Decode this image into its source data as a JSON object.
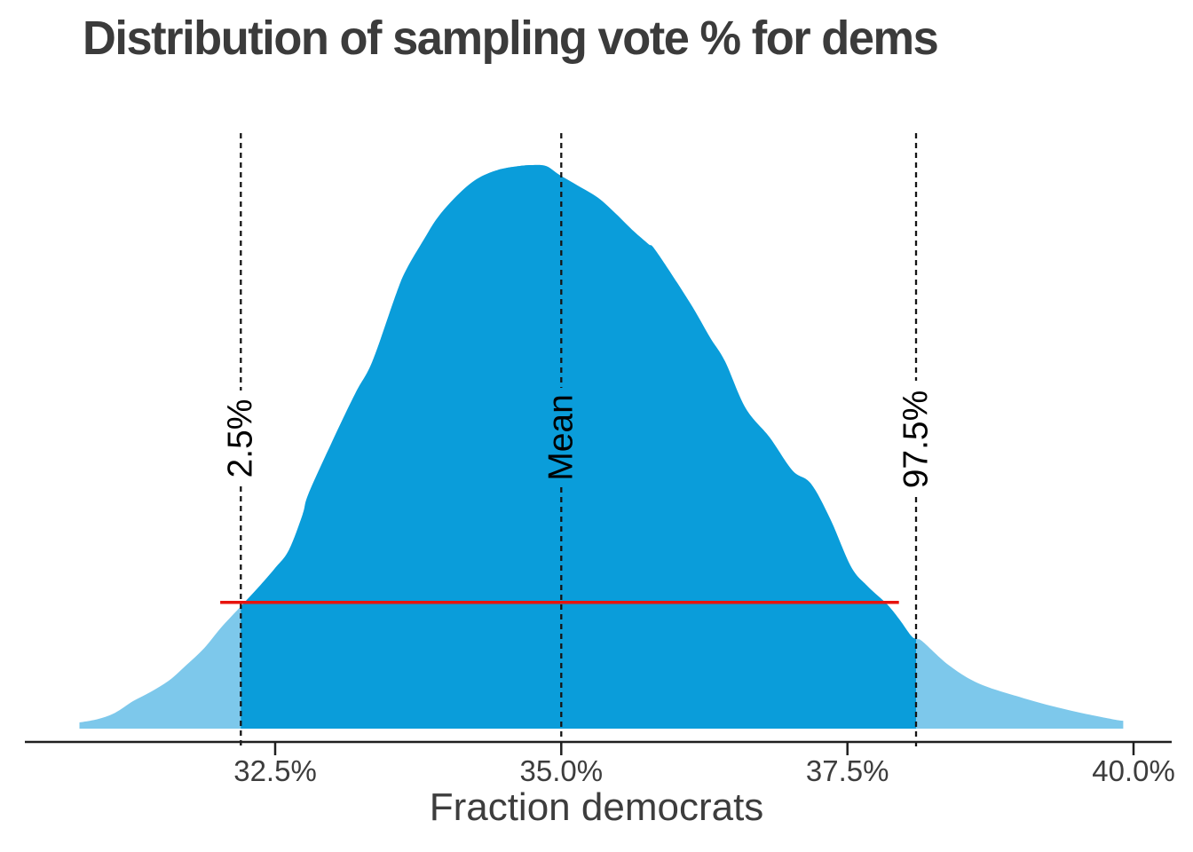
{
  "title": "Distribution of sampling vote % for dems",
  "x_axis": {
    "label": "Fraction democrats",
    "ticks": [
      "32.5%",
      "35.0%",
      "37.5%",
      "40.0%"
    ],
    "tick_values": [
      32.5,
      35.0,
      37.5,
      40.0
    ]
  },
  "annotations": {
    "lower": {
      "label": "2.5%",
      "value": 32.2
    },
    "mean": {
      "label": "Mean",
      "value": 35.0
    },
    "upper": {
      "label": "97.5%",
      "value": 38.1
    }
  },
  "colors": {
    "fill_main": "#0a9dda",
    "fill_tail": "#7dc8eb",
    "interval_line": "#e8130c",
    "quantile_line": "#141414",
    "axis_line": "#1f1f1f",
    "text": "#3d3d3d",
    "annotation_text": "#000000",
    "title_text": "#3b3b3b"
  },
  "chart_data": {
    "type": "area",
    "title": "Distribution of sampling vote % for dems",
    "xlabel": "Fraction democrats",
    "ylabel": "",
    "x_range_percent": [
      30.6,
      40.3
    ],
    "x_tick_labels": [
      "32.5%",
      "35.0%",
      "37.5%",
      "40.0%"
    ],
    "grid": "off",
    "legend": "none",
    "description": "Kernel density of sampled democratic vote fraction; middle 95% (between 2.5% and 97.5% quantiles) shaded darker blue, tails lighter blue, mean marked with dashed line, red horizontal segment spanning the credible interval",
    "mean_percent": 35.0,
    "quantile_2_5_percent": 32.2,
    "quantile_97_5_percent": 38.1,
    "shaded_interval": [
      32.2,
      38.1
    ],
    "curve": {
      "x": [
        30.79,
        30.95,
        31.1,
        31.26,
        31.41,
        31.57,
        31.72,
        31.88,
        32.03,
        32.2,
        32.35,
        32.5,
        32.62,
        32.74,
        32.79,
        32.99,
        33.2,
        33.35,
        33.56,
        33.65,
        33.8,
        33.92,
        34.09,
        34.26,
        34.44,
        34.62,
        34.75,
        34.87,
        34.98,
        35.14,
        35.32,
        35.47,
        35.63,
        35.76,
        35.83,
        36.12,
        36.3,
        36.43,
        36.61,
        36.82,
        37.02,
        37.18,
        37.35,
        37.53,
        37.67,
        37.84,
        37.95,
        38.06,
        38.11,
        38.16,
        38.39,
        38.65,
        39.04,
        39.43,
        39.81,
        39.91
      ],
      "density": [
        0.011,
        0.017,
        0.028,
        0.049,
        0.065,
        0.085,
        0.112,
        0.143,
        0.18,
        0.217,
        0.25,
        0.285,
        0.317,
        0.38,
        0.416,
        0.506,
        0.595,
        0.652,
        0.773,
        0.816,
        0.868,
        0.907,
        0.946,
        0.975,
        0.991,
        0.998,
        1.0,
        0.998,
        0.983,
        0.964,
        0.942,
        0.915,
        0.883,
        0.86,
        0.847,
        0.757,
        0.694,
        0.652,
        0.569,
        0.517,
        0.458,
        0.435,
        0.372,
        0.288,
        0.254,
        0.222,
        0.195,
        0.164,
        0.159,
        0.154,
        0.112,
        0.08,
        0.054,
        0.033,
        0.017,
        0.014
      ]
    },
    "red_line": {
      "y_density": 0.224,
      "x_from": 32.02,
      "x_to": 37.95
    }
  }
}
